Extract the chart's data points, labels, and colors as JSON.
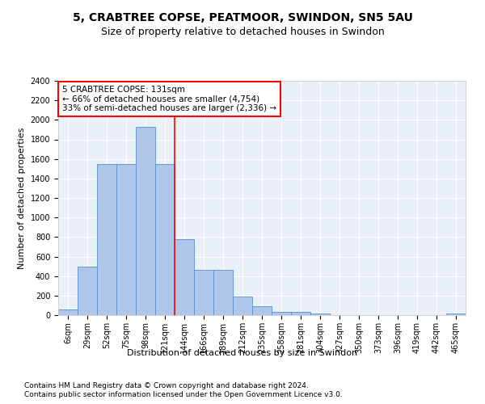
{
  "title": "5, CRABTREE COPSE, PEATMOOR, SWINDON, SN5 5AU",
  "subtitle": "Size of property relative to detached houses in Swindon",
  "xlabel": "Distribution of detached houses by size in Swindon",
  "ylabel": "Number of detached properties",
  "footnote1": "Contains HM Land Registry data © Crown copyright and database right 2024.",
  "footnote2": "Contains public sector information licensed under the Open Government Licence v3.0.",
  "annotation_title": "5 CRABTREE COPSE: 131sqm",
  "annotation_line1": "← 66% of detached houses are smaller (4,754)",
  "annotation_line2": "33% of semi-detached houses are larger (2,336) →",
  "bar_labels": [
    "6sqm",
    "29sqm",
    "52sqm",
    "75sqm",
    "98sqm",
    "121sqm",
    "144sqm",
    "166sqm",
    "189sqm",
    "212sqm",
    "235sqm",
    "258sqm",
    "281sqm",
    "304sqm",
    "327sqm",
    "350sqm",
    "373sqm",
    "396sqm",
    "419sqm",
    "442sqm",
    "465sqm"
  ],
  "bar_values": [
    60,
    500,
    1550,
    1550,
    1930,
    1550,
    780,
    460,
    460,
    190,
    90,
    35,
    30,
    20,
    0,
    0,
    0,
    0,
    0,
    0,
    20
  ],
  "bar_color": "#aec6e8",
  "bar_edgecolor": "#5b8fc9",
  "highlight_index": 5,
  "ylim": [
    0,
    2400
  ],
  "yticks": [
    0,
    200,
    400,
    600,
    800,
    1000,
    1200,
    1400,
    1600,
    1800,
    2000,
    2200,
    2400
  ],
  "bg_color": "#eaf0f8",
  "grid_color": "white",
  "title_fontsize": 10,
  "subtitle_fontsize": 9,
  "axis_label_fontsize": 8,
  "tick_fontsize": 7,
  "annotation_fontsize": 7.5,
  "footnote_fontsize": 6.5
}
